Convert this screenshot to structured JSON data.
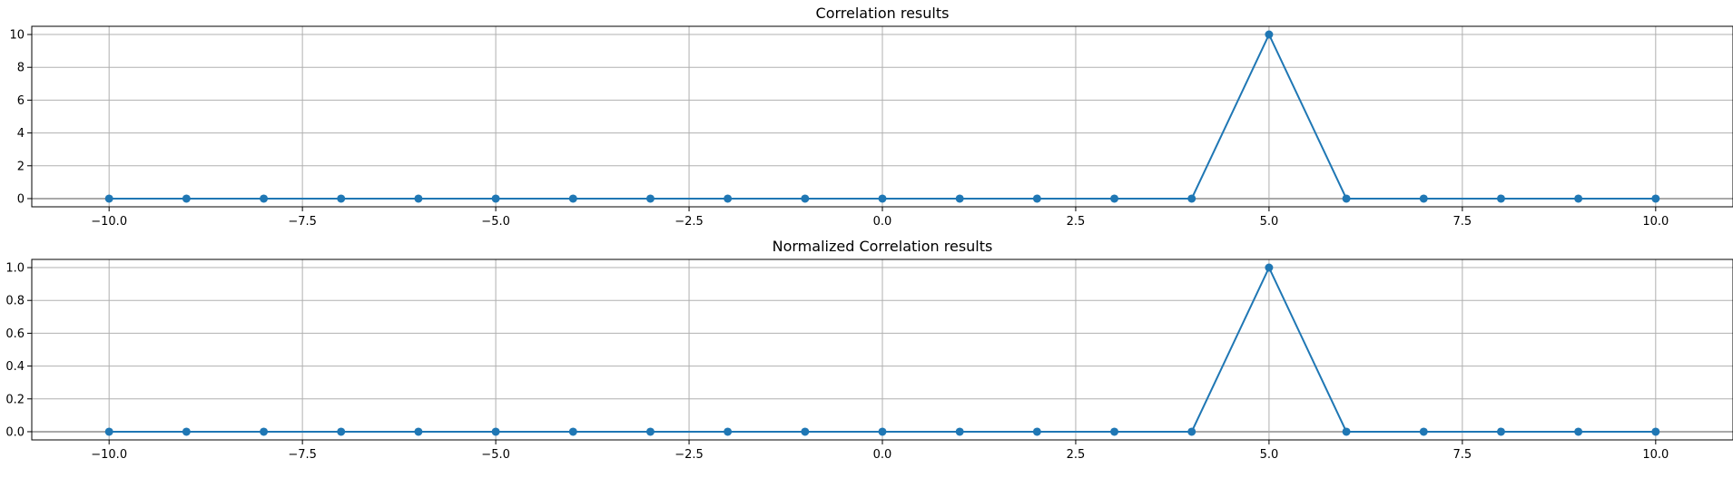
{
  "colors": {
    "series": "#1f77b4",
    "baseline": "#a9a9a9",
    "grid": "#b0b0b0"
  },
  "chart_data": [
    {
      "type": "line",
      "title": "Correlation results",
      "xlabel": "",
      "ylabel": "",
      "x": [
        -10,
        -9,
        -8,
        -7,
        -6,
        -5,
        -4,
        -3,
        -2,
        -1,
        0,
        1,
        2,
        3,
        4,
        5,
        6,
        7,
        8,
        9,
        10
      ],
      "series": [
        {
          "values": [
            0,
            0,
            0,
            0,
            0,
            0,
            0,
            0,
            0,
            0,
            0,
            0,
            0,
            0,
            0,
            10,
            0,
            0,
            0,
            0,
            0
          ],
          "marker": "circle"
        }
      ],
      "xlim": [
        -11,
        11
      ],
      "ylim": [
        -0.5,
        10.5
      ],
      "xticks": [
        -10.0,
        -7.5,
        -5.0,
        -2.5,
        0.0,
        2.5,
        5.0,
        7.5,
        10.0
      ],
      "xtick_labels": [
        "−10.0",
        "−7.5",
        "−5.0",
        "−2.5",
        "0.0",
        "2.5",
        "5.0",
        "7.5",
        "10.0"
      ],
      "yticks": [
        0,
        2,
        4,
        6,
        8,
        10
      ],
      "ytick_labels": [
        "0",
        "2",
        "4",
        "6",
        "8",
        "10"
      ],
      "baseline": 0,
      "grid": true,
      "legend": "none"
    },
    {
      "type": "line",
      "title": "Normalized Correlation results",
      "xlabel": "",
      "ylabel": "",
      "x": [
        -10,
        -9,
        -8,
        -7,
        -6,
        -5,
        -4,
        -3,
        -2,
        -1,
        0,
        1,
        2,
        3,
        4,
        5,
        6,
        7,
        8,
        9,
        10
      ],
      "series": [
        {
          "values": [
            0,
            0,
            0,
            0,
            0,
            0,
            0,
            0,
            0,
            0,
            0,
            0,
            0,
            0,
            0,
            1.0,
            0,
            0,
            0,
            0,
            0
          ],
          "marker": "circle"
        }
      ],
      "xlim": [
        -11,
        11
      ],
      "ylim": [
        -0.05,
        1.05
      ],
      "xticks": [
        -10.0,
        -7.5,
        -5.0,
        -2.5,
        0.0,
        2.5,
        5.0,
        7.5,
        10.0
      ],
      "xtick_labels": [
        "−10.0",
        "−7.5",
        "−5.0",
        "−2.5",
        "0.0",
        "2.5",
        "5.0",
        "7.5",
        "10.0"
      ],
      "yticks": [
        0.0,
        0.2,
        0.4,
        0.6,
        0.8,
        1.0
      ],
      "ytick_labels": [
        "0.0",
        "0.2",
        "0.4",
        "0.6",
        "0.8",
        "1.0"
      ],
      "baseline": 0,
      "grid": true,
      "legend": "none"
    }
  ]
}
